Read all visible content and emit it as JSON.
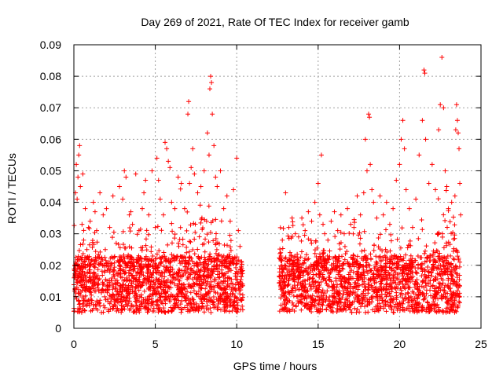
{
  "chart_data": {
    "type": "scatter",
    "title": "Day 269 of 2021, Rate Of TEC Index for receiver gamb",
    "xlabel": "GPS time / hours",
    "ylabel": "ROTI / TECUs",
    "xlim": [
      0,
      25
    ],
    "ylim": [
      0,
      0.09
    ],
    "x_ticks": [
      "0",
      "5",
      "10",
      "15",
      "20",
      "25"
    ],
    "x_tick_values": [
      0,
      5,
      10,
      15,
      20,
      25
    ],
    "y_ticks": [
      "0",
      "0.01",
      "0.02",
      "0.03",
      "0.04",
      "0.05",
      "0.06",
      "0.07",
      "0.08",
      "0.09"
    ],
    "y_tick_values": [
      0,
      0.01,
      0.02,
      0.03,
      0.04,
      0.05,
      0.06,
      0.07,
      0.08,
      0.09
    ],
    "grid": true,
    "marker": "+",
    "color": "#ff0000",
    "data_gap": [
      10.4,
      12.6
    ],
    "series": [
      {
        "name": "ROTI",
        "points": [
          [
            0.05,
            0.02
          ],
          [
            0.1,
            0.043
          ],
          [
            0.15,
            0.052
          ],
          [
            0.2,
            0.041
          ],
          [
            0.25,
            0.048
          ],
          [
            0.3,
            0.055
          ],
          [
            0.35,
            0.058
          ],
          [
            0.4,
            0.045
          ],
          [
            0.5,
            0.033
          ],
          [
            0.55,
            0.049
          ],
          [
            0.6,
            0.028
          ],
          [
            0.7,
            0.038
          ],
          [
            0.8,
            0.025
          ],
          [
            0.9,
            0.032
          ],
          [
            1.0,
            0.034
          ],
          [
            1.2,
            0.04
          ],
          [
            1.3,
            0.037
          ],
          [
            1.4,
            0.031
          ],
          [
            1.6,
            0.043
          ],
          [
            1.8,
            0.036
          ],
          [
            2.0,
            0.038
          ],
          [
            2.2,
            0.032
          ],
          [
            2.4,
            0.042
          ],
          [
            2.6,
            0.027
          ],
          [
            2.8,
            0.045
          ],
          [
            3.0,
            0.041
          ],
          [
            3.1,
            0.05
          ],
          [
            3.2,
            0.048
          ],
          [
            3.4,
            0.036
          ],
          [
            3.5,
            0.037
          ],
          [
            3.6,
            0.033
          ],
          [
            3.8,
            0.049
          ],
          [
            4.0,
            0.031
          ],
          [
            4.2,
            0.038
          ],
          [
            4.3,
            0.043
          ],
          [
            4.4,
            0.047
          ],
          [
            4.6,
            0.036
          ],
          [
            4.8,
            0.05
          ],
          [
            5.0,
            0.032
          ],
          [
            5.1,
            0.054
          ],
          [
            5.2,
            0.047
          ],
          [
            5.3,
            0.041
          ],
          [
            5.5,
            0.036
          ],
          [
            5.6,
            0.059
          ],
          [
            5.7,
            0.057
          ],
          [
            5.8,
            0.053
          ],
          [
            5.9,
            0.051
          ],
          [
            6.0,
            0.04
          ],
          [
            6.2,
            0.038
          ],
          [
            6.4,
            0.048
          ],
          [
            6.6,
            0.046
          ],
          [
            6.8,
            0.038
          ],
          [
            7.0,
            0.068
          ],
          [
            7.05,
            0.072
          ],
          [
            7.1,
            0.046
          ],
          [
            7.2,
            0.051
          ],
          [
            7.3,
            0.057
          ],
          [
            7.4,
            0.049
          ],
          [
            7.6,
            0.043
          ],
          [
            7.8,
            0.045
          ],
          [
            8.0,
            0.05
          ],
          [
            8.2,
            0.062
          ],
          [
            8.3,
            0.055
          ],
          [
            8.35,
            0.076
          ],
          [
            8.4,
            0.08
          ],
          [
            8.45,
            0.078
          ],
          [
            8.5,
            0.068
          ],
          [
            8.6,
            0.058
          ],
          [
            8.7,
            0.048
          ],
          [
            8.8,
            0.045
          ],
          [
            9.0,
            0.05
          ],
          [
            9.2,
            0.038
          ],
          [
            9.4,
            0.042
          ],
          [
            9.6,
            0.034
          ],
          [
            9.8,
            0.044
          ],
          [
            10.0,
            0.054
          ],
          [
            10.1,
            0.031
          ],
          [
            10.2,
            0.026
          ],
          [
            10.3,
            0.021
          ],
          [
            12.7,
            0.024
          ],
          [
            12.8,
            0.028
          ],
          [
            13.0,
            0.043
          ],
          [
            13.2,
            0.032
          ],
          [
            13.4,
            0.035
          ],
          [
            13.6,
            0.03
          ],
          [
            13.8,
            0.029
          ],
          [
            14.0,
            0.035
          ],
          [
            14.2,
            0.031
          ],
          [
            14.4,
            0.037
          ],
          [
            14.6,
            0.034
          ],
          [
            14.8,
            0.04
          ],
          [
            15.0,
            0.046
          ],
          [
            15.1,
            0.036
          ],
          [
            15.2,
            0.055
          ],
          [
            15.3,
            0.033
          ],
          [
            15.4,
            0.03
          ],
          [
            15.6,
            0.028
          ],
          [
            15.8,
            0.034
          ],
          [
            16.0,
            0.037
          ],
          [
            16.2,
            0.031
          ],
          [
            16.4,
            0.036
          ],
          [
            16.6,
            0.03
          ],
          [
            16.8,
            0.038
          ],
          [
            17.0,
            0.033
          ],
          [
            17.2,
            0.032
          ],
          [
            17.4,
            0.042
          ],
          [
            17.6,
            0.036
          ],
          [
            17.8,
            0.043
          ],
          [
            17.9,
            0.06
          ],
          [
            18.0,
            0.05
          ],
          [
            18.1,
            0.068
          ],
          [
            18.15,
            0.067
          ],
          [
            18.2,
            0.052
          ],
          [
            18.3,
            0.044
          ],
          [
            18.4,
            0.04
          ],
          [
            18.6,
            0.035
          ],
          [
            18.8,
            0.042
          ],
          [
            19.0,
            0.036
          ],
          [
            19.2,
            0.04
          ],
          [
            19.4,
            0.033
          ],
          [
            19.6,
            0.038
          ],
          [
            19.8,
            0.047
          ],
          [
            20.0,
            0.052
          ],
          [
            20.1,
            0.06
          ],
          [
            20.2,
            0.066
          ],
          [
            20.3,
            0.057
          ],
          [
            20.4,
            0.044
          ],
          [
            20.6,
            0.038
          ],
          [
            20.8,
            0.032
          ],
          [
            21.0,
            0.041
          ],
          [
            21.2,
            0.055
          ],
          [
            21.4,
            0.066
          ],
          [
            21.5,
            0.082
          ],
          [
            21.55,
            0.081
          ],
          [
            21.6,
            0.06
          ],
          [
            21.8,
            0.046
          ],
          [
            22.0,
            0.052
          ],
          [
            22.2,
            0.044
          ],
          [
            22.4,
            0.063
          ],
          [
            22.5,
            0.071
          ],
          [
            22.6,
            0.086
          ],
          [
            22.7,
            0.07
          ],
          [
            22.8,
            0.05
          ],
          [
            22.9,
            0.045
          ],
          [
            23.0,
            0.038
          ],
          [
            23.2,
            0.04
          ],
          [
            23.4,
            0.042
          ],
          [
            23.45,
            0.063
          ],
          [
            23.5,
            0.071
          ],
          [
            23.55,
            0.066
          ],
          [
            23.6,
            0.062
          ],
          [
            23.65,
            0.057
          ],
          [
            23.7,
            0.046
          ],
          [
            23.75,
            0.036
          ]
        ]
      }
    ]
  }
}
